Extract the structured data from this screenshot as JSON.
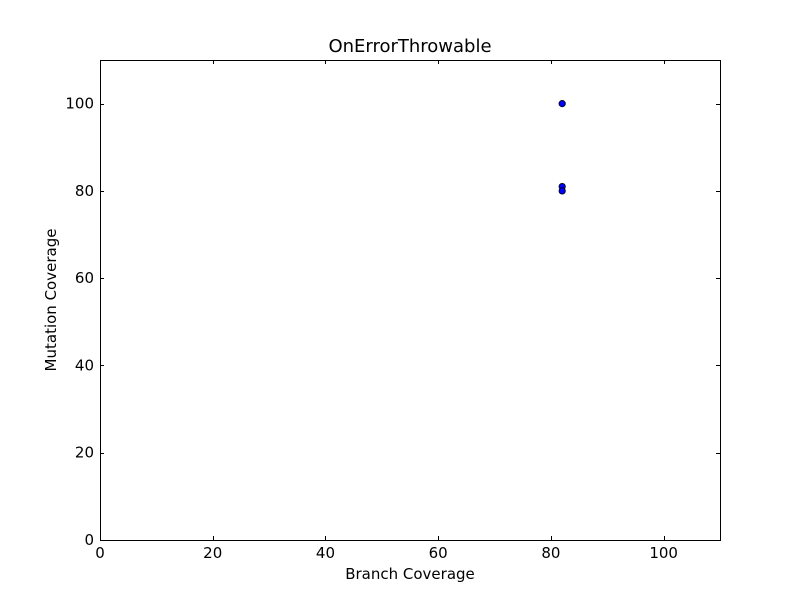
{
  "chart_data": {
    "type": "scatter",
    "title": "OnErrorThrowable",
    "xlabel": "Branch Coverage",
    "ylabel": "Mutation Coverage",
    "xlim": [
      0,
      110
    ],
    "ylim": [
      0,
      110
    ],
    "xticks": [
      "0",
      "20",
      "40",
      "60",
      "80",
      "100"
    ],
    "yticks": [
      "0",
      "20",
      "40",
      "60",
      "80",
      "100"
    ],
    "grid": false,
    "series": [
      {
        "color": "#0000ff",
        "points": [
          {
            "x": 82,
            "y": 100
          },
          {
            "x": 82,
            "y": 81
          },
          {
            "x": 82,
            "y": 80
          }
        ]
      }
    ]
  }
}
